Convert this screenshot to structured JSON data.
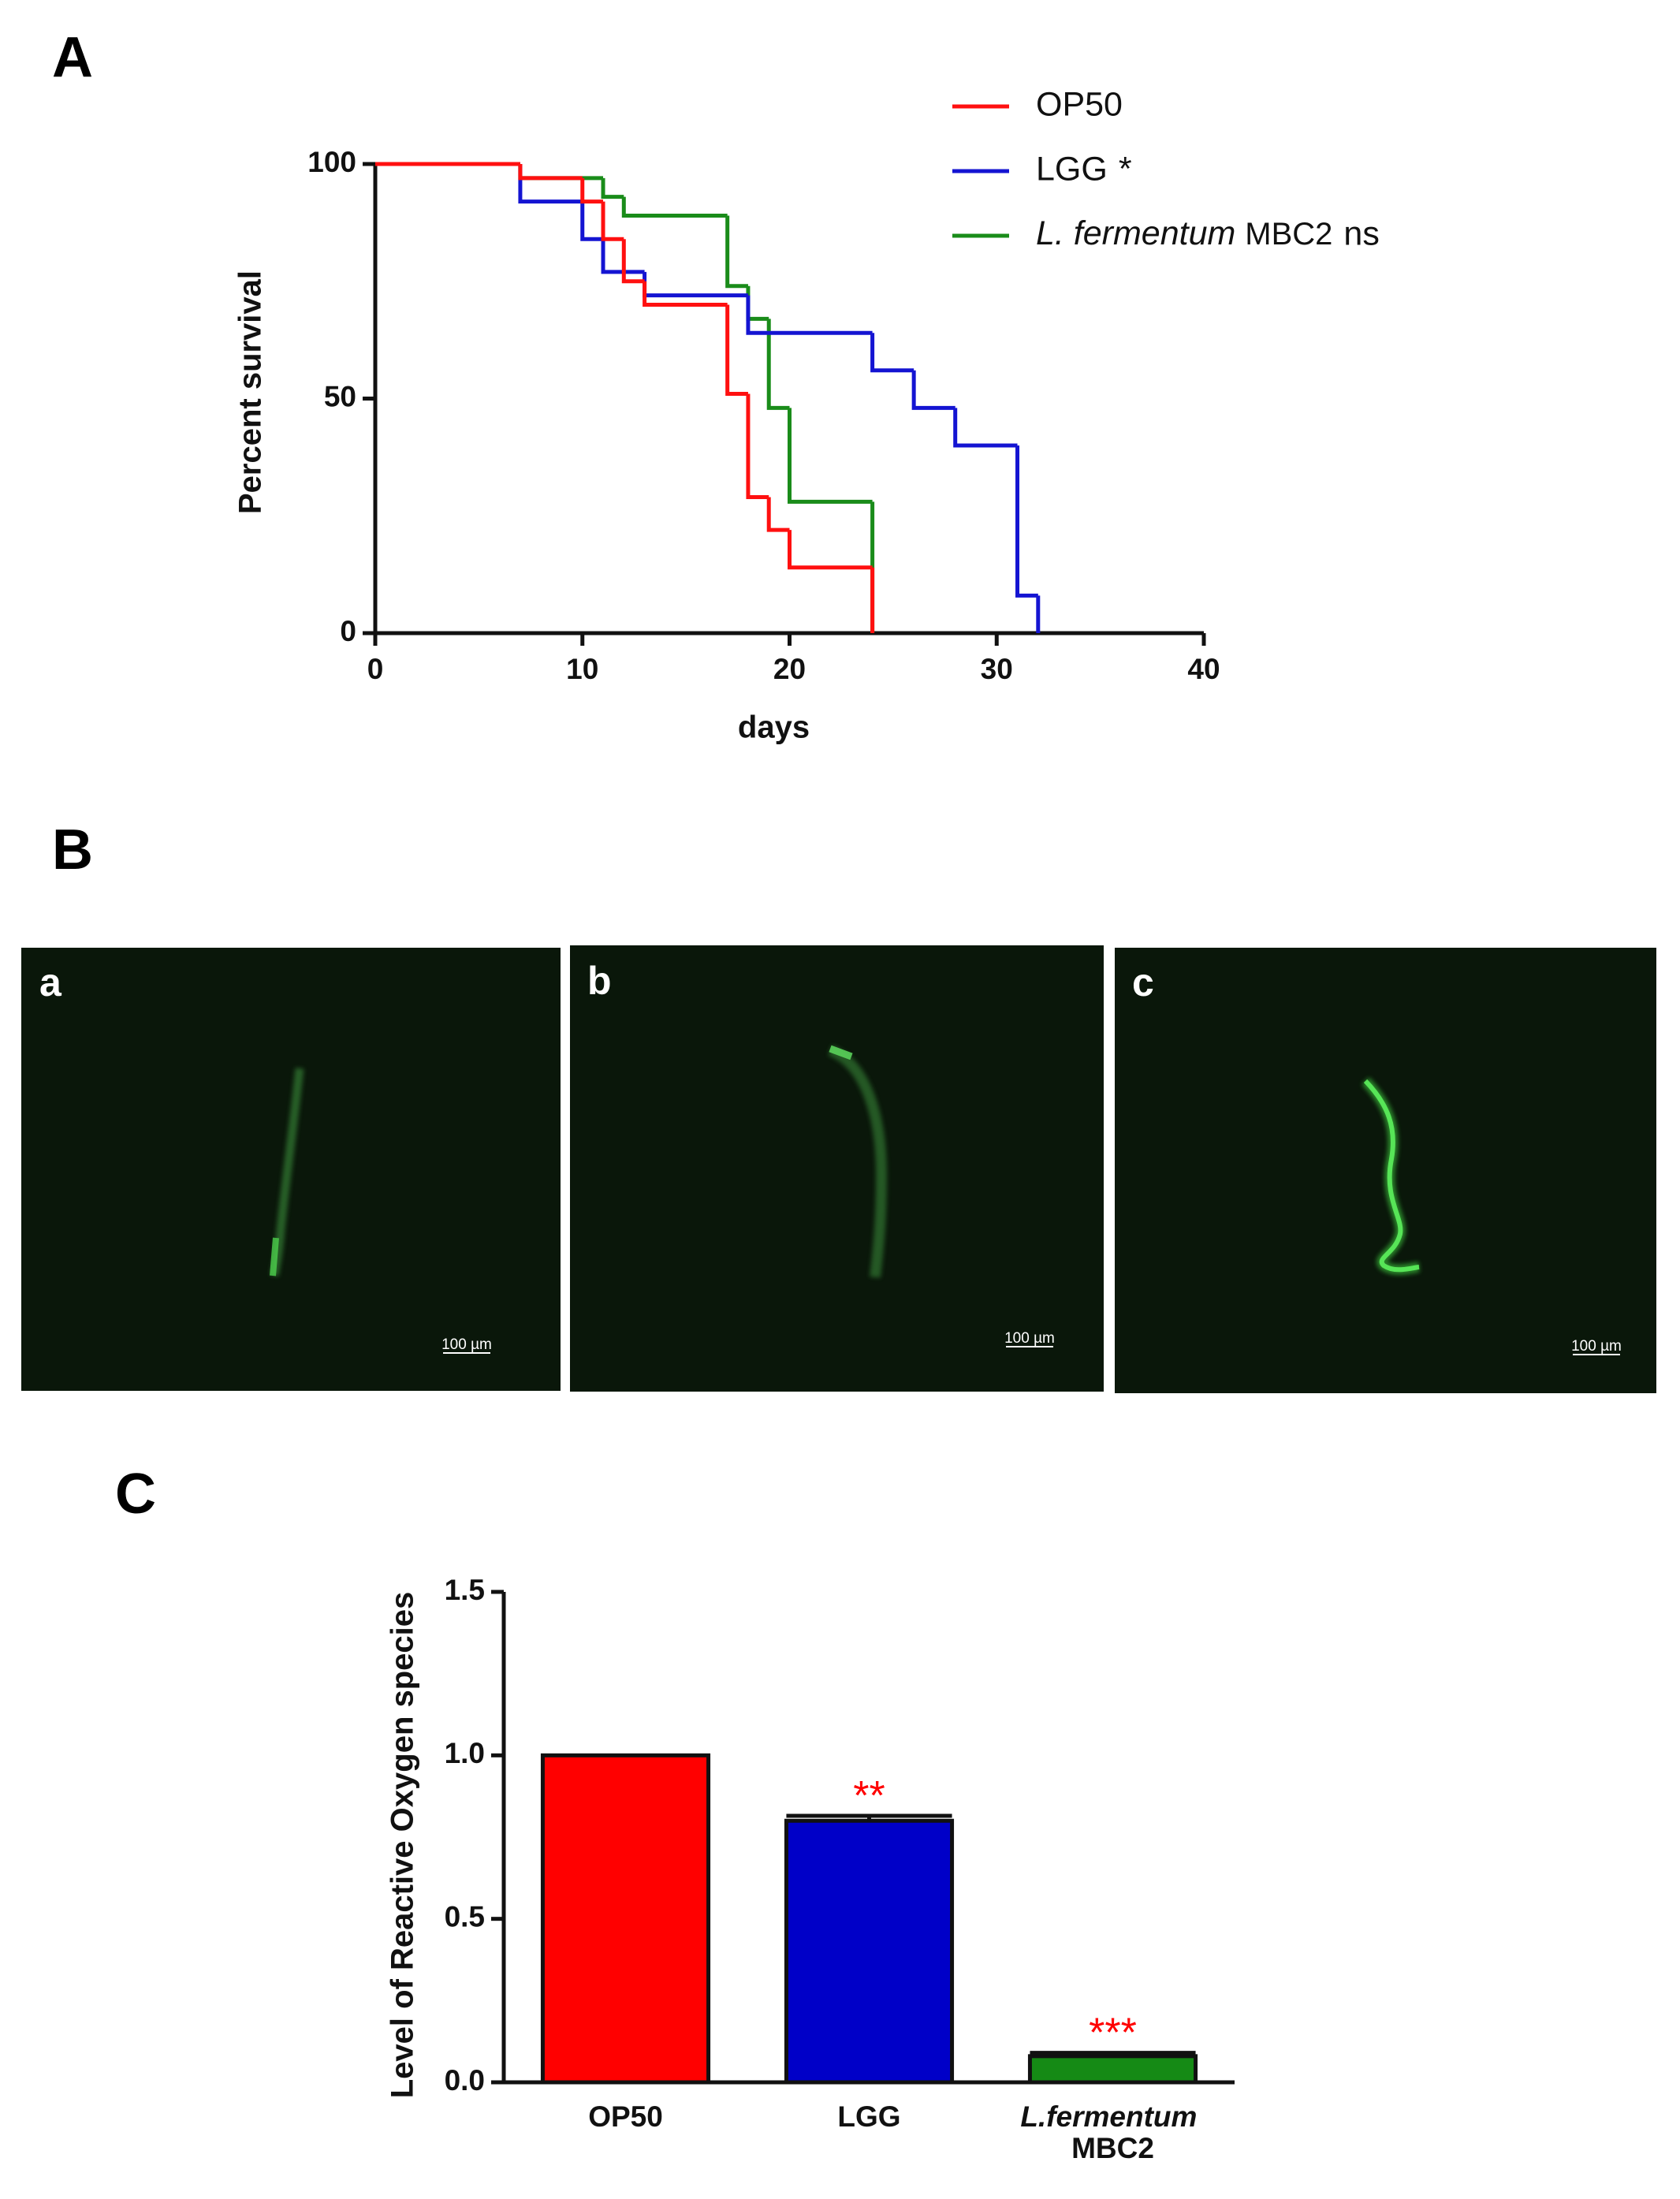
{
  "panel_labels": [
    "A",
    "B",
    "C"
  ],
  "micrographs": [
    {
      "label": "a",
      "scale_bar": "100 µm"
    },
    {
      "label": "b",
      "scale_bar": "100 µm"
    },
    {
      "label": "c",
      "scale_bar": "100 µm"
    }
  ],
  "chart_data": [
    {
      "type": "line",
      "step": true,
      "xlabel": "days",
      "ylabel": "Percent survival",
      "xlim": [
        0,
        40
      ],
      "xticks": [
        0,
        10,
        20,
        30,
        40
      ],
      "ylim": [
        0,
        100
      ],
      "yticks": [
        0,
        50,
        100
      ],
      "legend": "upper right",
      "significance_color": "#ff0000",
      "series": [
        {
          "name": "OP50",
          "color": "#ff1010",
          "x": [
            0,
            7,
            10,
            11,
            12,
            13,
            17,
            18,
            19,
            20,
            24
          ],
          "values": [
            100,
            97,
            92,
            84,
            75,
            70,
            51,
            29,
            22,
            14,
            0
          ]
        },
        {
          "name": "LGG",
          "color": "#1414d2",
          "significance": "*",
          "x": [
            0,
            7,
            10,
            11,
            13,
            18,
            24,
            26,
            28,
            31,
            32
          ],
          "values": [
            100,
            92,
            84,
            77,
            72,
            64,
            56,
            48,
            40,
            8,
            0
          ]
        },
        {
          "name": "L. fermentum MBC2",
          "color": "#1a8c1a",
          "significance": "ns",
          "x": [
            0,
            7,
            11,
            12,
            17,
            18,
            19,
            20,
            24
          ],
          "values": [
            100,
            97,
            93,
            89,
            74,
            67,
            48,
            28,
            0
          ]
        }
      ]
    },
    {
      "type": "bar",
      "ylabel": "Level of Reactive Oxygen species",
      "categories": [
        "OP50",
        "LGG",
        "L.fermentum MBC2"
      ],
      "values": [
        1.0,
        0.8,
        0.08
      ],
      "errors": [
        null,
        0.015,
        0.01
      ],
      "colors": [
        "#ff0000",
        "#0000c8",
        "#158a15"
      ],
      "annotations": [
        null,
        "**",
        "***"
      ],
      "annotation_color": "#ff0000",
      "ylim": [
        0,
        1.5
      ],
      "yticks": [
        {
          "value": 0,
          "label": "0.0"
        },
        0.5,
        {
          "value": 1,
          "label": "1.0"
        },
        1.5
      ]
    }
  ]
}
